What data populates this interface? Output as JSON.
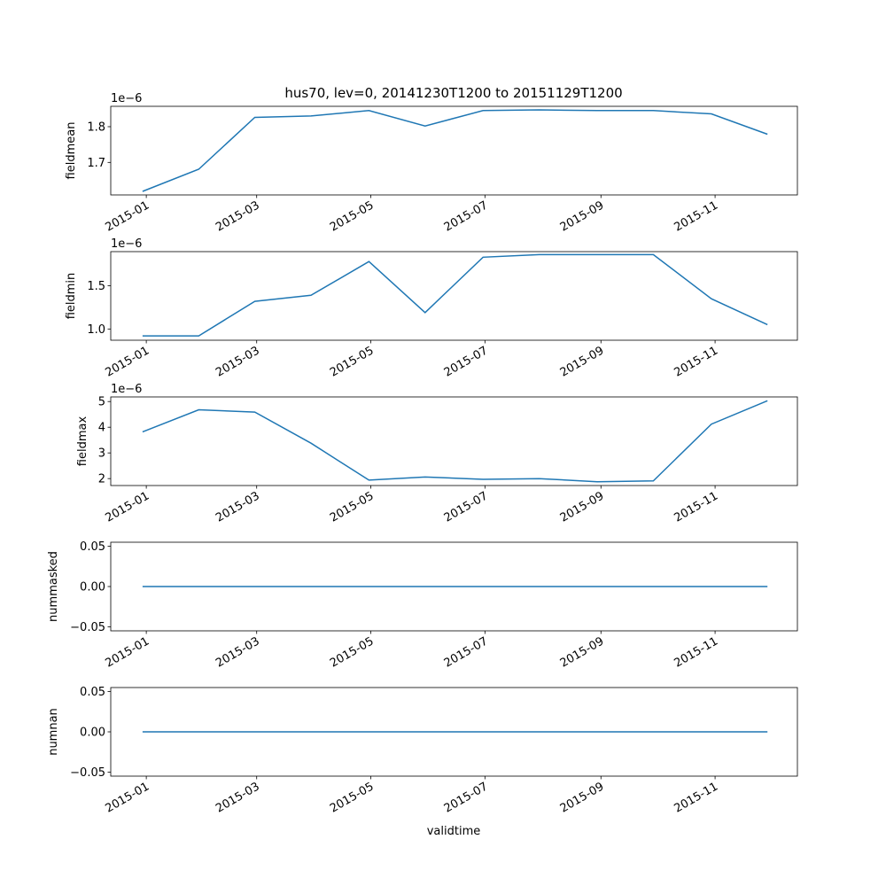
{
  "chart_data": {
    "type": "line",
    "title": "hus70, lev=0, 20141230T1200 to 20151129T1200",
    "xlabel": "validtime",
    "x": [
      "2014-12-30",
      "2015-01-29",
      "2015-02-28",
      "2015-03-30",
      "2015-04-30",
      "2015-05-30",
      "2015-06-30",
      "2015-07-30",
      "2015-08-30",
      "2015-09-29",
      "2015-10-30",
      "2015-11-29"
    ],
    "xlim": [
      "2014-12-13",
      "2015-12-15"
    ],
    "xticks": [
      "2015-01",
      "2015-03",
      "2015-05",
      "2015-07",
      "2015-09",
      "2015-11"
    ],
    "color": "#1f77b4",
    "panels": [
      {
        "ylabel": "fieldmean",
        "scale_label": "1e−6",
        "ylim": [
          1.609,
          1.857
        ],
        "yticks": [
          {
            "v": 1.7,
            "label": "1.7"
          },
          {
            "v": 1.8,
            "label": "1.8"
          }
        ],
        "values": [
          1.619,
          1.681,
          1.826,
          1.83,
          1.845,
          1.802,
          1.845,
          1.847,
          1.845,
          1.845,
          1.836,
          1.779
        ]
      },
      {
        "ylabel": "fieldmin",
        "scale_label": "1e−6",
        "ylim": [
          0.87,
          1.895
        ],
        "yticks": [
          {
            "v": 1.0,
            "label": "1.0"
          },
          {
            "v": 1.5,
            "label": "1.5"
          }
        ],
        "values": [
          0.92,
          0.92,
          1.32,
          1.39,
          1.78,
          1.19,
          1.83,
          1.86,
          1.86,
          1.86,
          1.35,
          1.05
        ]
      },
      {
        "ylabel": "fieldmax",
        "scale_label": "1e−6",
        "ylim": [
          1.73,
          5.18
        ],
        "yticks": [
          {
            "v": 2,
            "label": "2"
          },
          {
            "v": 3,
            "label": "3"
          },
          {
            "v": 4,
            "label": "4"
          },
          {
            "v": 5,
            "label": "5"
          }
        ],
        "values": [
          3.82,
          4.68,
          4.59,
          3.38,
          1.94,
          2.06,
          1.97,
          2.0,
          1.88,
          1.91,
          4.12,
          5.03
        ]
      },
      {
        "ylabel": "nummasked",
        "scale_label": "",
        "ylim": [
          -0.055,
          0.055
        ],
        "yticks": [
          {
            "v": -0.05,
            "label": "−0.05"
          },
          {
            "v": 0,
            "label": "0.00"
          },
          {
            "v": 0.05,
            "label": "0.05"
          }
        ],
        "values": [
          0,
          0,
          0,
          0,
          0,
          0,
          0,
          0,
          0,
          0,
          0,
          0
        ]
      },
      {
        "ylabel": "numnan",
        "scale_label": "",
        "ylim": [
          -0.055,
          0.055
        ],
        "yticks": [
          {
            "v": -0.05,
            "label": "−0.05"
          },
          {
            "v": 0,
            "label": "0.00"
          },
          {
            "v": 0.05,
            "label": "0.05"
          }
        ],
        "values": [
          0,
          0,
          0,
          0,
          0,
          0,
          0,
          0,
          0,
          0,
          0,
          0
        ]
      }
    ]
  }
}
